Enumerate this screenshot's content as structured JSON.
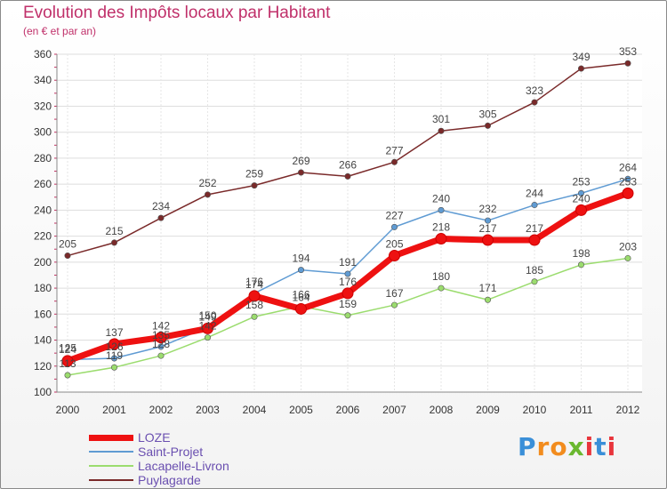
{
  "chart_data": {
    "type": "line",
    "title": "Evolution des Impôts locaux par Habitant",
    "subtitle": "(en € et par an)",
    "xlabel": "",
    "ylabel": "",
    "categories": [
      "2000",
      "2001",
      "2002",
      "2003",
      "2004",
      "2005",
      "2006",
      "2007",
      "2008",
      "2009",
      "2010",
      "2011",
      "2012"
    ],
    "ylim": [
      100,
      360
    ],
    "yticks": [
      100,
      120,
      140,
      160,
      180,
      200,
      220,
      240,
      260,
      280,
      300,
      320,
      340,
      360
    ],
    "grid": true,
    "legend_position": "bottom-left",
    "series": [
      {
        "name": "LOZE",
        "color": "#ee1111",
        "values": [
          124,
          137,
          142,
          149,
          174,
          164,
          176,
          205,
          218,
          217,
          217,
          240,
          253
        ]
      },
      {
        "name": "Saint-Projet",
        "color": "#5f9bd3",
        "values": [
          125,
          126,
          135,
          150,
          176,
          194,
          191,
          227,
          240,
          232,
          244,
          253,
          264
        ]
      },
      {
        "name": "Lacapelle-Livron",
        "color": "#9bdc6e",
        "values": [
          113,
          119,
          128,
          142,
          158,
          166,
          159,
          167,
          180,
          171,
          185,
          198,
          203
        ]
      },
      {
        "name": "Puylagarde",
        "color": "#7a2a2a",
        "values": [
          205,
          215,
          234,
          252,
          259,
          269,
          266,
          277,
          301,
          305,
          323,
          349,
          353
        ]
      }
    ]
  },
  "brand": {
    "text": "Proxiti",
    "letters": [
      "P",
      "r",
      "o",
      "x",
      "i",
      "t",
      "i"
    ],
    "colors": [
      "#3a8fd8",
      "#f28c1e",
      "#f28c1e",
      "#6ab82f",
      "#e8353c",
      "#3a8fd8",
      "#e8353c"
    ]
  }
}
